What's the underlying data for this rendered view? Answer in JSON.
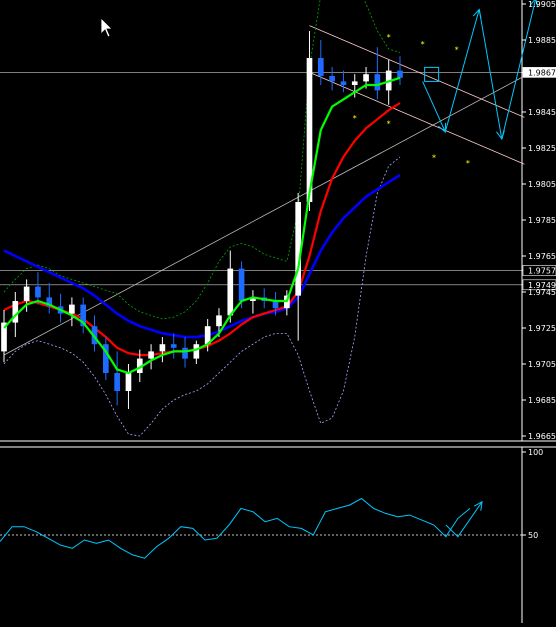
{
  "colors": {
    "background": "#000000",
    "axis_text": "#ffffff",
    "grid_line": "#ffffff",
    "candle_up": "#ffffff",
    "candle_down": "#1e6cff",
    "ma_fast": "#00ff00",
    "ma_mid": "#ff0000",
    "ma_slow": "#0000ff",
    "bollinger": "#aaaaff",
    "trendline": "#bbbbbb",
    "channel": "#ffcccc",
    "projection": "#00c8ff",
    "marker": "#ffff00",
    "rsi_line": "#00c8ff"
  },
  "chart_data": [
    {
      "type": "candlestick",
      "ylim": [
        1.9665,
        1.9905
      ],
      "y_ticks": [
        "1.9905",
        "1.9885",
        "1.9867",
        "1.9845",
        "1.9825",
        "1.9805",
        "1.9785",
        "1.9765",
        "1.9757",
        "1.9749",
        "1.9745",
        "1.9725",
        "1.9705",
        "1.9685",
        "1.9665"
      ],
      "price_lines": [
        {
          "label": "1.9867",
          "value": 1.9867,
          "boxed": true
        },
        {
          "label": "1.9757",
          "value": 1.9757,
          "boxed": true
        },
        {
          "label": "1.9749",
          "value": 1.9749,
          "boxed": true
        }
      ],
      "candles": [
        [
          1.9712,
          1.9735,
          1.9706,
          1.9728
        ],
        [
          1.9728,
          1.9745,
          1.972,
          1.974
        ],
        [
          1.974,
          1.9752,
          1.9734,
          1.9748
        ],
        [
          1.9748,
          1.9756,
          1.9738,
          1.9742
        ],
        [
          1.9742,
          1.975,
          1.9733,
          1.9737
        ],
        [
          1.9737,
          1.9744,
          1.9728,
          1.9733
        ],
        [
          1.9733,
          1.9742,
          1.9726,
          1.9738
        ],
        [
          1.9738,
          1.9742,
          1.9722,
          1.9726
        ],
        [
          1.9726,
          1.9732,
          1.9712,
          1.9716
        ],
        [
          1.9716,
          1.972,
          1.9696,
          1.97
        ],
        [
          1.97,
          1.9712,
          1.9682,
          1.969
        ],
        [
          1.969,
          1.9705,
          1.968,
          1.97
        ],
        [
          1.97,
          1.9713,
          1.9695,
          1.9708
        ],
        [
          1.9708,
          1.9716,
          1.9702,
          1.9712
        ],
        [
          1.9712,
          1.972,
          1.9706,
          1.9716
        ],
        [
          1.9716,
          1.9722,
          1.9708,
          1.9714
        ],
        [
          1.9714,
          1.972,
          1.9703,
          1.9708
        ],
        [
          1.9708,
          1.9718,
          1.9705,
          1.9716
        ],
        [
          1.9716,
          1.973,
          1.9712,
          1.9726
        ],
        [
          1.9726,
          1.9736,
          1.972,
          1.9732
        ],
        [
          1.9732,
          1.9768,
          1.9728,
          1.9758
        ],
        [
          1.9758,
          1.9762,
          1.9736,
          1.974
        ],
        [
          1.974,
          1.9746,
          1.9733,
          1.9742
        ],
        [
          1.9742,
          1.9747,
          1.9736,
          1.974
        ],
        [
          1.974,
          1.9745,
          1.9732,
          1.9736
        ],
        [
          1.9736,
          1.9746,
          1.9732,
          1.9743
        ],
        [
          1.9743,
          1.98,
          1.9718,
          1.9795
        ],
        [
          1.9795,
          1.989,
          1.979,
          1.9875
        ],
        [
          1.9875,
          1.9885,
          1.986,
          1.9865
        ],
        [
          1.9865,
          1.987,
          1.9857,
          1.9862
        ],
        [
          1.9862,
          1.9868,
          1.9856,
          1.986
        ],
        [
          1.986,
          1.9866,
          1.9853,
          1.9862
        ],
        [
          1.9862,
          1.987,
          1.9858,
          1.9866
        ],
        [
          1.9866,
          1.9881,
          1.9852,
          1.9857
        ],
        [
          1.9857,
          1.9874,
          1.9849,
          1.9868
        ],
        [
          1.9868,
          1.9876,
          1.986,
          1.9864
        ]
      ],
      "ma_fast": [
        1.9725,
        1.9732,
        1.9738,
        1.974,
        1.9738,
        1.9735,
        1.9732,
        1.9728,
        1.972,
        1.9712,
        1.9702,
        1.97,
        1.9703,
        1.9707,
        1.971,
        1.9712,
        1.9712,
        1.9713,
        1.9716,
        1.9722,
        1.9732,
        1.974,
        1.9742,
        1.9741,
        1.974,
        1.974,
        1.9758,
        1.98,
        1.9835,
        1.9848,
        1.9852,
        1.9856,
        1.986,
        1.986,
        1.9862,
        1.9864
      ],
      "ma_mid": [
        1.9735,
        1.9738,
        1.974,
        1.9739,
        1.9737,
        1.9735,
        1.9733,
        1.973,
        1.9725,
        1.972,
        1.9714,
        1.9711,
        1.971,
        1.971,
        1.9711,
        1.9712,
        1.9712,
        1.9713,
        1.9715,
        1.9718,
        1.9722,
        1.9727,
        1.9731,
        1.9733,
        1.9735,
        1.9737,
        1.9745,
        1.9765,
        1.979,
        1.9808,
        1.982,
        1.9829,
        1.9836,
        1.9841,
        1.9846,
        1.985
      ],
      "ma_slow": [
        1.9768,
        1.9765,
        1.9762,
        1.9759,
        1.9756,
        1.9753,
        1.975,
        1.9747,
        1.9743,
        1.9738,
        1.9733,
        1.9729,
        1.9726,
        1.9724,
        1.9722,
        1.9721,
        1.972,
        1.972,
        1.9721,
        1.9723,
        1.9726,
        1.9729,
        1.9731,
        1.9733,
        1.9734,
        1.9736,
        1.9742,
        1.9755,
        1.9768,
        1.9778,
        1.9786,
        1.9792,
        1.9798,
        1.9802,
        1.9806,
        1.981
      ],
      "bb_upper": [
        1.9745,
        1.9752,
        1.9758,
        1.976,
        1.9758,
        1.9754,
        1.9752,
        1.975,
        1.9748,
        1.9746,
        1.9744,
        1.9738,
        1.9734,
        1.9732,
        1.973,
        1.9731,
        1.9734,
        1.974,
        1.975,
        1.9762,
        1.977,
        1.9772,
        1.977,
        1.9766,
        1.9764,
        1.9762,
        1.979,
        1.987,
        1.991,
        1.992,
        1.9925,
        1.992,
        1.9905,
        1.989,
        1.988,
        1.9878
      ],
      "bb_lower": [
        1.9705,
        1.9712,
        1.9716,
        1.9718,
        1.9716,
        1.9714,
        1.9711,
        1.9706,
        1.9698,
        1.9688,
        1.9676,
        1.9666,
        1.9665,
        1.9672,
        1.968,
        1.9685,
        1.9688,
        1.969,
        1.9694,
        1.97,
        1.9706,
        1.9712,
        1.9716,
        1.972,
        1.9722,
        1.9722,
        1.971,
        1.969,
        1.9672,
        1.9675,
        1.969,
        1.972,
        1.9765,
        1.98,
        1.9815,
        1.982
      ],
      "trendline": [
        [
          0,
          1.971
        ],
        [
          46,
          1.9865
        ]
      ],
      "channel_upper": [
        [
          27,
          1.9893
        ],
        [
          46,
          1.9842
        ]
      ],
      "channel_lower": [
        [
          27,
          1.9867
        ],
        [
          46,
          1.9816
        ]
      ],
      "projection_path": [
        [
          37,
          1.9862
        ],
        [
          39,
          1.9834
        ],
        [
          42,
          1.9902
        ],
        [
          44,
          1.983
        ],
        [
          47,
          1.9908
        ]
      ],
      "markers": [
        [
          34,
          1.9885
        ],
        [
          37,
          1.9881
        ],
        [
          40,
          1.9878
        ],
        [
          31,
          1.984
        ],
        [
          34,
          1.9837
        ],
        [
          38,
          1.9818
        ],
        [
          41,
          1.9815
        ]
      ],
      "marker_glyph": "*"
    },
    {
      "type": "line",
      "ylim": [
        0,
        100
      ],
      "y_ticks": [
        "100",
        "50"
      ],
      "reference_line": 50,
      "values": [
        46,
        55,
        55,
        52,
        48,
        44,
        42,
        47,
        45,
        47,
        42,
        38,
        36,
        43,
        48,
        55,
        54,
        47,
        48,
        56,
        66,
        64,
        58,
        60,
        55,
        54,
        50,
        64,
        66,
        68,
        72,
        66,
        63,
        61,
        62,
        59,
        56,
        49,
        60,
        66
      ],
      "projection": [
        [
          37,
          56
        ],
        [
          38,
          49
        ],
        [
          40,
          70
        ]
      ]
    }
  ]
}
